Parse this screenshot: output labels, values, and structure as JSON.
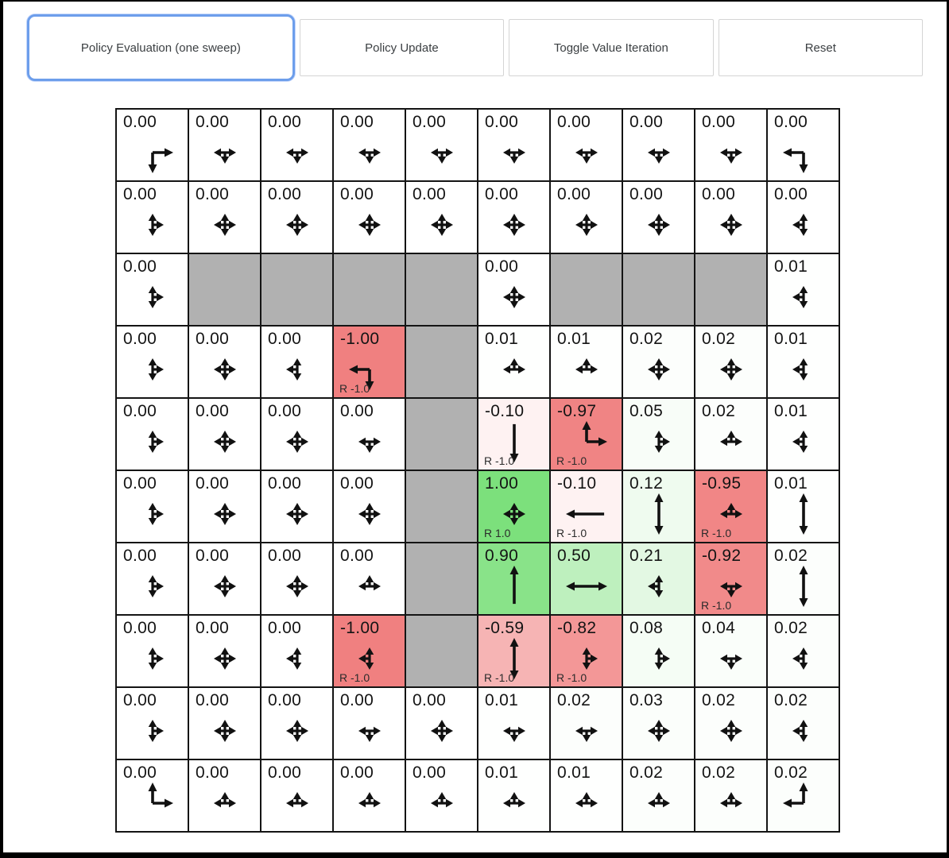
{
  "toolbar": {
    "buttons": [
      {
        "label": "Policy Evaluation (one sweep)",
        "active": true
      },
      {
        "label": "Policy Update",
        "active": false
      },
      {
        "label": "Toggle Value Iteration",
        "active": false
      },
      {
        "label": "Reset",
        "active": false
      }
    ]
  },
  "colors": {
    "accent": "#6d9eeb",
    "positive": "#7ce07c",
    "negative": "#f08080",
    "wall": "#b1b1b1",
    "grid_line": "#141414",
    "arrow": "#111111"
  },
  "grid": {
    "rows": 10,
    "cols": 10,
    "cells": [
      [
        {
          "v": "0.00",
          "n": 0,
          "a": [
            "down",
            "right"
          ]
        },
        {
          "v": "0.00",
          "n": 0,
          "a": [
            "left",
            "right",
            "down"
          ]
        },
        {
          "v": "0.00",
          "n": 0,
          "a": [
            "left",
            "right",
            "down"
          ]
        },
        {
          "v": "0.00",
          "n": 0,
          "a": [
            "left",
            "right",
            "down"
          ]
        },
        {
          "v": "0.00",
          "n": 0,
          "a": [
            "left",
            "right",
            "down"
          ]
        },
        {
          "v": "0.00",
          "n": 0,
          "a": [
            "left",
            "right",
            "down"
          ]
        },
        {
          "v": "0.00",
          "n": 0,
          "a": [
            "left",
            "right",
            "down"
          ]
        },
        {
          "v": "0.00",
          "n": 0,
          "a": [
            "left",
            "right",
            "down"
          ]
        },
        {
          "v": "0.00",
          "n": 0,
          "a": [
            "left",
            "right",
            "down"
          ]
        },
        {
          "v": "0.00",
          "n": 0,
          "a": [
            "left",
            "down"
          ]
        }
      ],
      [
        {
          "v": "0.00",
          "n": 0,
          "a": [
            "up",
            "down",
            "right"
          ]
        },
        {
          "v": "0.00",
          "n": 0,
          "a": [
            "up",
            "down",
            "left",
            "right"
          ]
        },
        {
          "v": "0.00",
          "n": 0,
          "a": [
            "up",
            "down",
            "left",
            "right"
          ]
        },
        {
          "v": "0.00",
          "n": 0,
          "a": [
            "up",
            "down",
            "left",
            "right"
          ]
        },
        {
          "v": "0.00",
          "n": 0,
          "a": [
            "up",
            "down",
            "left",
            "right"
          ]
        },
        {
          "v": "0.00",
          "n": 0,
          "a": [
            "up",
            "down",
            "left",
            "right"
          ]
        },
        {
          "v": "0.00",
          "n": 0,
          "a": [
            "up",
            "down",
            "left",
            "right"
          ]
        },
        {
          "v": "0.00",
          "n": 0,
          "a": [
            "up",
            "down",
            "left",
            "right"
          ]
        },
        {
          "v": "0.00",
          "n": 0,
          "a": [
            "up",
            "down",
            "left",
            "right"
          ]
        },
        {
          "v": "0.00",
          "n": 0,
          "a": [
            "up",
            "down",
            "left"
          ]
        }
      ],
      [
        {
          "v": "0.00",
          "n": 0,
          "a": [
            "up",
            "down",
            "right"
          ]
        },
        {
          "wall": true
        },
        {
          "wall": true
        },
        {
          "wall": true
        },
        {
          "wall": true
        },
        {
          "v": "0.00",
          "n": 0,
          "a": [
            "up",
            "down",
            "left",
            "right"
          ]
        },
        {
          "wall": true
        },
        {
          "wall": true
        },
        {
          "wall": true
        },
        {
          "v": "0.01",
          "n": 0.01,
          "a": [
            "up",
            "down",
            "left"
          ]
        }
      ],
      [
        {
          "v": "0.00",
          "n": 0,
          "a": [
            "up",
            "down",
            "right"
          ]
        },
        {
          "v": "0.00",
          "n": 0,
          "a": [
            "up",
            "down",
            "left",
            "right"
          ]
        },
        {
          "v": "0.00",
          "n": 0,
          "a": [
            "up",
            "down",
            "left"
          ]
        },
        {
          "v": "-1.00",
          "n": -1,
          "a": [
            "left",
            "down"
          ],
          "r": "R -1.0"
        },
        {
          "wall": true
        },
        {
          "v": "0.01",
          "n": 0.01,
          "a": [
            "left",
            "right",
            "up"
          ]
        },
        {
          "v": "0.01",
          "n": 0.01,
          "a": [
            "left",
            "right",
            "up"
          ]
        },
        {
          "v": "0.02",
          "n": 0.02,
          "a": [
            "up",
            "down",
            "left",
            "right"
          ]
        },
        {
          "v": "0.02",
          "n": 0.02,
          "a": [
            "up",
            "down",
            "left",
            "right"
          ]
        },
        {
          "v": "0.01",
          "n": 0.01,
          "a": [
            "up",
            "down",
            "left"
          ]
        }
      ],
      [
        {
          "v": "0.00",
          "n": 0,
          "a": [
            "up",
            "down",
            "right"
          ]
        },
        {
          "v": "0.00",
          "n": 0,
          "a": [
            "up",
            "down",
            "left",
            "right"
          ]
        },
        {
          "v": "0.00",
          "n": 0,
          "a": [
            "up",
            "down",
            "left",
            "right"
          ]
        },
        {
          "v": "0.00",
          "n": 0,
          "a": [
            "left",
            "right",
            "down"
          ]
        },
        {
          "wall": true
        },
        {
          "v": "-0.10",
          "n": -0.1,
          "a": [
            "down"
          ],
          "r": "R -1.0"
        },
        {
          "v": "-0.97",
          "n": -0.97,
          "a": [
            "up",
            "right"
          ],
          "r": "R -1.0"
        },
        {
          "v": "0.05",
          "n": 0.05,
          "a": [
            "up",
            "down",
            "right"
          ]
        },
        {
          "v": "0.02",
          "n": 0.02,
          "a": [
            "left",
            "right",
            "up"
          ]
        },
        {
          "v": "0.01",
          "n": 0.01,
          "a": [
            "up",
            "down",
            "left"
          ]
        }
      ],
      [
        {
          "v": "0.00",
          "n": 0,
          "a": [
            "up",
            "down",
            "right"
          ]
        },
        {
          "v": "0.00",
          "n": 0,
          "a": [
            "up",
            "down",
            "left",
            "right"
          ]
        },
        {
          "v": "0.00",
          "n": 0,
          "a": [
            "up",
            "down",
            "left",
            "right"
          ]
        },
        {
          "v": "0.00",
          "n": 0,
          "a": [
            "up",
            "down",
            "left",
            "right"
          ]
        },
        {
          "wall": true
        },
        {
          "v": "1.00",
          "n": 1,
          "a": [
            "up",
            "down",
            "left",
            "right"
          ],
          "r": "R 1.0"
        },
        {
          "v": "-0.10",
          "n": -0.1,
          "a": [
            "left"
          ],
          "r": "R -1.0"
        },
        {
          "v": "0.12",
          "n": 0.12,
          "a": [
            "up",
            "down"
          ]
        },
        {
          "v": "-0.95",
          "n": -0.95,
          "a": [
            "left",
            "right",
            "up"
          ],
          "r": "R -1.0"
        },
        {
          "v": "0.01",
          "n": 0.01,
          "a": [
            "up",
            "down"
          ]
        }
      ],
      [
        {
          "v": "0.00",
          "n": 0,
          "a": [
            "up",
            "down",
            "right"
          ]
        },
        {
          "v": "0.00",
          "n": 0,
          "a": [
            "up",
            "down",
            "left",
            "right"
          ]
        },
        {
          "v": "0.00",
          "n": 0,
          "a": [
            "up",
            "down",
            "left",
            "right"
          ]
        },
        {
          "v": "0.00",
          "n": 0,
          "a": [
            "left",
            "right",
            "up"
          ]
        },
        {
          "wall": true
        },
        {
          "v": "0.90",
          "n": 0.9,
          "a": [
            "up"
          ]
        },
        {
          "v": "0.50",
          "n": 0.5,
          "a": [
            "left",
            "right"
          ]
        },
        {
          "v": "0.21",
          "n": 0.21,
          "a": [
            "up",
            "down",
            "left"
          ]
        },
        {
          "v": "-0.92",
          "n": -0.92,
          "a": [
            "left",
            "right",
            "down"
          ],
          "r": "R -1.0"
        },
        {
          "v": "0.02",
          "n": 0.02,
          "a": [
            "up",
            "down"
          ]
        }
      ],
      [
        {
          "v": "0.00",
          "n": 0,
          "a": [
            "up",
            "down",
            "right"
          ]
        },
        {
          "v": "0.00",
          "n": 0,
          "a": [
            "up",
            "down",
            "left",
            "right"
          ]
        },
        {
          "v": "0.00",
          "n": 0,
          "a": [
            "up",
            "down",
            "left"
          ]
        },
        {
          "v": "-1.00",
          "n": -1,
          "a": [
            "up",
            "down",
            "left"
          ],
          "r": "R -1.0"
        },
        {
          "wall": true
        },
        {
          "v": "-0.59",
          "n": -0.59,
          "a": [
            "up",
            "down"
          ],
          "r": "R -1.0"
        },
        {
          "v": "-0.82",
          "n": -0.82,
          "a": [
            "up",
            "down",
            "right"
          ],
          "r": "R -1.0"
        },
        {
          "v": "0.08",
          "n": 0.08,
          "a": [
            "up",
            "down",
            "right"
          ]
        },
        {
          "v": "0.04",
          "n": 0.04,
          "a": [
            "left",
            "right",
            "down"
          ]
        },
        {
          "v": "0.02",
          "n": 0.02,
          "a": [
            "up",
            "down",
            "left"
          ]
        }
      ],
      [
        {
          "v": "0.00",
          "n": 0,
          "a": [
            "up",
            "down",
            "right"
          ]
        },
        {
          "v": "0.00",
          "n": 0,
          "a": [
            "up",
            "down",
            "left",
            "right"
          ]
        },
        {
          "v": "0.00",
          "n": 0,
          "a": [
            "up",
            "down",
            "left",
            "right"
          ]
        },
        {
          "v": "0.00",
          "n": 0,
          "a": [
            "left",
            "right",
            "down"
          ]
        },
        {
          "v": "0.00",
          "n": 0,
          "a": [
            "up",
            "down",
            "left",
            "right"
          ]
        },
        {
          "v": "0.01",
          "n": 0.01,
          "a": [
            "left",
            "right",
            "down"
          ]
        },
        {
          "v": "0.02",
          "n": 0.02,
          "a": [
            "left",
            "right",
            "down"
          ]
        },
        {
          "v": "0.03",
          "n": 0.03,
          "a": [
            "up",
            "down",
            "left",
            "right"
          ]
        },
        {
          "v": "0.02",
          "n": 0.02,
          "a": [
            "up",
            "down",
            "left",
            "right"
          ]
        },
        {
          "v": "0.02",
          "n": 0.02,
          "a": [
            "up",
            "down",
            "left"
          ]
        }
      ],
      [
        {
          "v": "0.00",
          "n": 0,
          "a": [
            "up",
            "right"
          ]
        },
        {
          "v": "0.00",
          "n": 0,
          "a": [
            "left",
            "right",
            "up"
          ]
        },
        {
          "v": "0.00",
          "n": 0,
          "a": [
            "left",
            "right",
            "up"
          ]
        },
        {
          "v": "0.00",
          "n": 0,
          "a": [
            "left",
            "right",
            "up"
          ]
        },
        {
          "v": "0.00",
          "n": 0,
          "a": [
            "left",
            "right",
            "up"
          ]
        },
        {
          "v": "0.01",
          "n": 0.01,
          "a": [
            "left",
            "right",
            "up"
          ]
        },
        {
          "v": "0.01",
          "n": 0.01,
          "a": [
            "left",
            "right",
            "up"
          ]
        },
        {
          "v": "0.02",
          "n": 0.02,
          "a": [
            "left",
            "right",
            "up"
          ]
        },
        {
          "v": "0.02",
          "n": 0.02,
          "a": [
            "left",
            "right",
            "up"
          ]
        },
        {
          "v": "0.02",
          "n": 0.02,
          "a": [
            "up",
            "left"
          ]
        }
      ]
    ]
  }
}
